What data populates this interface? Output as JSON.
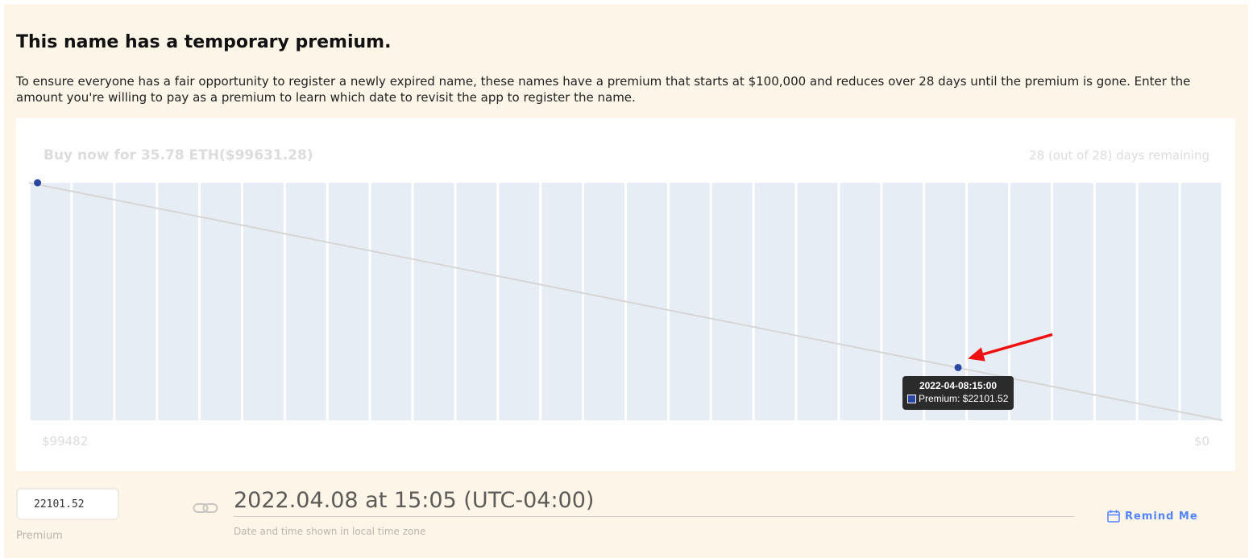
{
  "header": {
    "title": "This name has a temporary premium.",
    "description": "To ensure everyone has a fair opportunity to register a newly expired name, these names have a premium that starts at $100,000 and reduces over 28 days until the premium is gone. Enter the amount you're willing to pay as a premium to learn which date to revisit the app to register the name."
  },
  "chart": {
    "buy_now": "Buy now for 35.78 ETH($99631.28)",
    "days_remaining": "28 (out of 28) days remaining",
    "y_start_label": "$99482",
    "y_end_label": "$0",
    "tooltip": {
      "date": "2022-04-08:15:00",
      "value": "Premium: $22101.52"
    },
    "colors": {
      "band": "#e7edf5",
      "line": "#d6d6d6",
      "point": "#2a47a3",
      "arrow": "#ee1111"
    }
  },
  "chart_data": {
    "type": "line",
    "title": "",
    "xlabel": "",
    "ylabel": "",
    "day_bands": 28,
    "x_range": [
      0,
      28
    ],
    "y_range": [
      0,
      99482
    ],
    "grid": false,
    "series": [
      {
        "x": [
          0,
          28
        ],
        "y": [
          99482,
          0
        ]
      }
    ],
    "points": [
      {
        "x": 0.2,
        "y": 99482
      },
      {
        "x": 21.8,
        "y": 22101.52
      }
    ],
    "annotation": {
      "type": "arrow",
      "target_point": 1
    }
  },
  "controls": {
    "premium_value": "22101.52",
    "premium_label": "Premium",
    "link_icon": "link-icon",
    "date_display": "2022.04.08 at 15:05 (UTC-04:00)",
    "date_note": "Date and time shown in local time zone",
    "remind_icon": "calendar-icon",
    "remind_label": "Remind Me"
  }
}
